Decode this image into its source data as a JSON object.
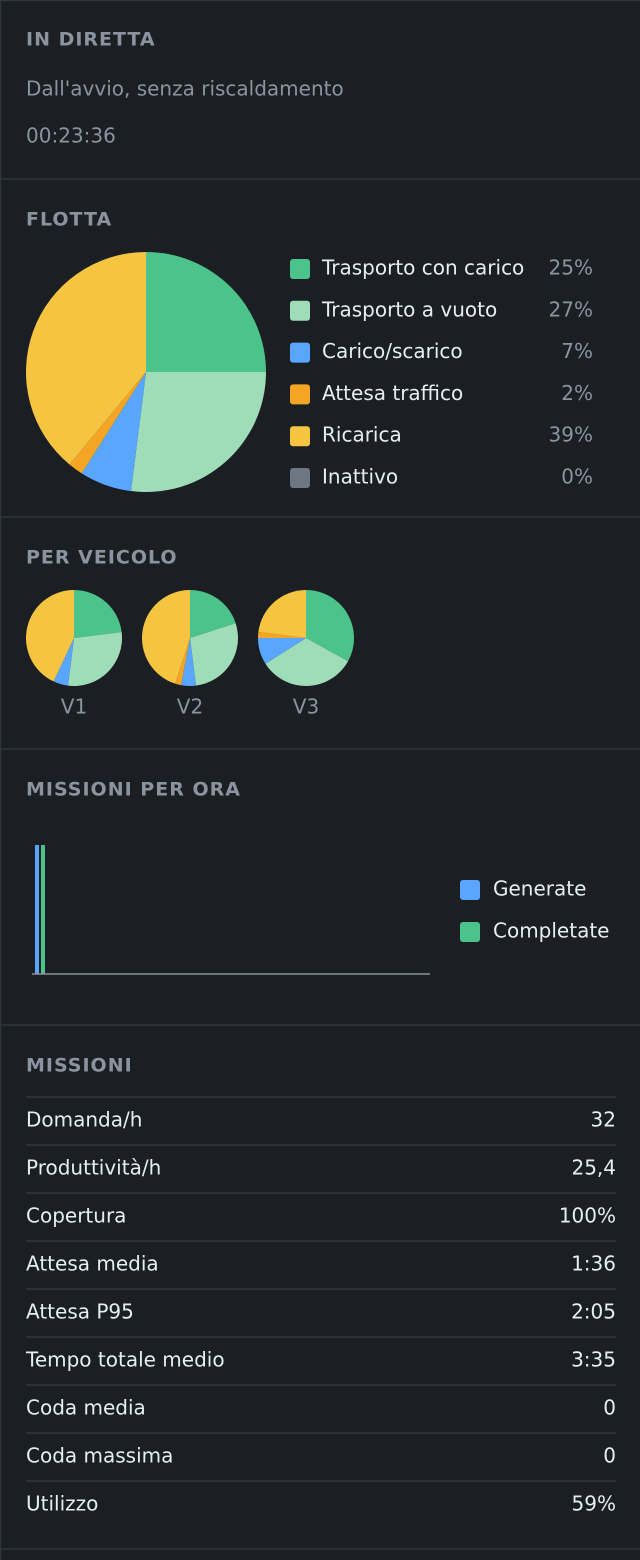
{
  "header": {
    "title": "IN DIRETTA",
    "subtitle": "Dall'avvio, senza riscaldamento",
    "time": "00:23:36"
  },
  "vehicles_title": "PER VEICOLO",
  "chart_data": [
    {
      "type": "pie",
      "title": "FLOTTA",
      "categories": [
        "Trasporto con carico",
        "Trasporto a vuoto",
        "Carico/scarico",
        "Attesa traffico",
        "Ricarica",
        "Inattivo"
      ],
      "values": [
        25,
        27,
        7,
        2,
        39,
        0
      ],
      "value_labels": [
        "25%",
        "27%",
        "7%",
        "2%",
        "39%",
        "0%"
      ],
      "colors": [
        "#4cc38a",
        "#9fdcb8",
        "#58a6ff",
        "#f5a524",
        "#f5c542",
        "#6e7681"
      ]
    },
    {
      "type": "pie",
      "title": "V1",
      "values": [
        23,
        29,
        5,
        0,
        43,
        0
      ],
      "colors": [
        "#4cc38a",
        "#9fdcb8",
        "#58a6ff",
        "#f5a524",
        "#f5c542",
        "#6e7681"
      ]
    },
    {
      "type": "pie",
      "title": "V2",
      "values": [
        20,
        28,
        5,
        2,
        45,
        0
      ],
      "colors": [
        "#4cc38a",
        "#9fdcb8",
        "#58a6ff",
        "#f5a524",
        "#f5c542",
        "#6e7681"
      ]
    },
    {
      "type": "pie",
      "title": "V3",
      "values": [
        33,
        33,
        9,
        2,
        23,
        0
      ],
      "colors": [
        "#4cc38a",
        "#9fdcb8",
        "#58a6ff",
        "#f5a524",
        "#f5c542",
        "#6e7681"
      ]
    },
    {
      "type": "bar",
      "title": "MISSIONI PER ORA",
      "categories": [
        null
      ],
      "ylim": [
        0,
        10
      ],
      "series": [
        {
          "name": "Generate",
          "color": "#58a6ff",
          "values": [
            10
          ]
        },
        {
          "name": "Completate",
          "color": "#4cc38a",
          "values": [
            10
          ]
        }
      ]
    }
  ],
  "missions": {
    "title": "MISSIONI",
    "rows": [
      [
        "Domanda/h",
        "32"
      ],
      [
        "Produttività/h",
        "25,4"
      ],
      [
        "Copertura",
        "100%"
      ],
      [
        "Attesa media",
        "1:36"
      ],
      [
        "Attesa P95",
        "2:05"
      ],
      [
        "Tempo totale medio",
        "3:35"
      ],
      [
        "Coda media",
        "0"
      ],
      [
        "Coda massima",
        "0"
      ],
      [
        "Utilizzo",
        "59%"
      ]
    ]
  }
}
